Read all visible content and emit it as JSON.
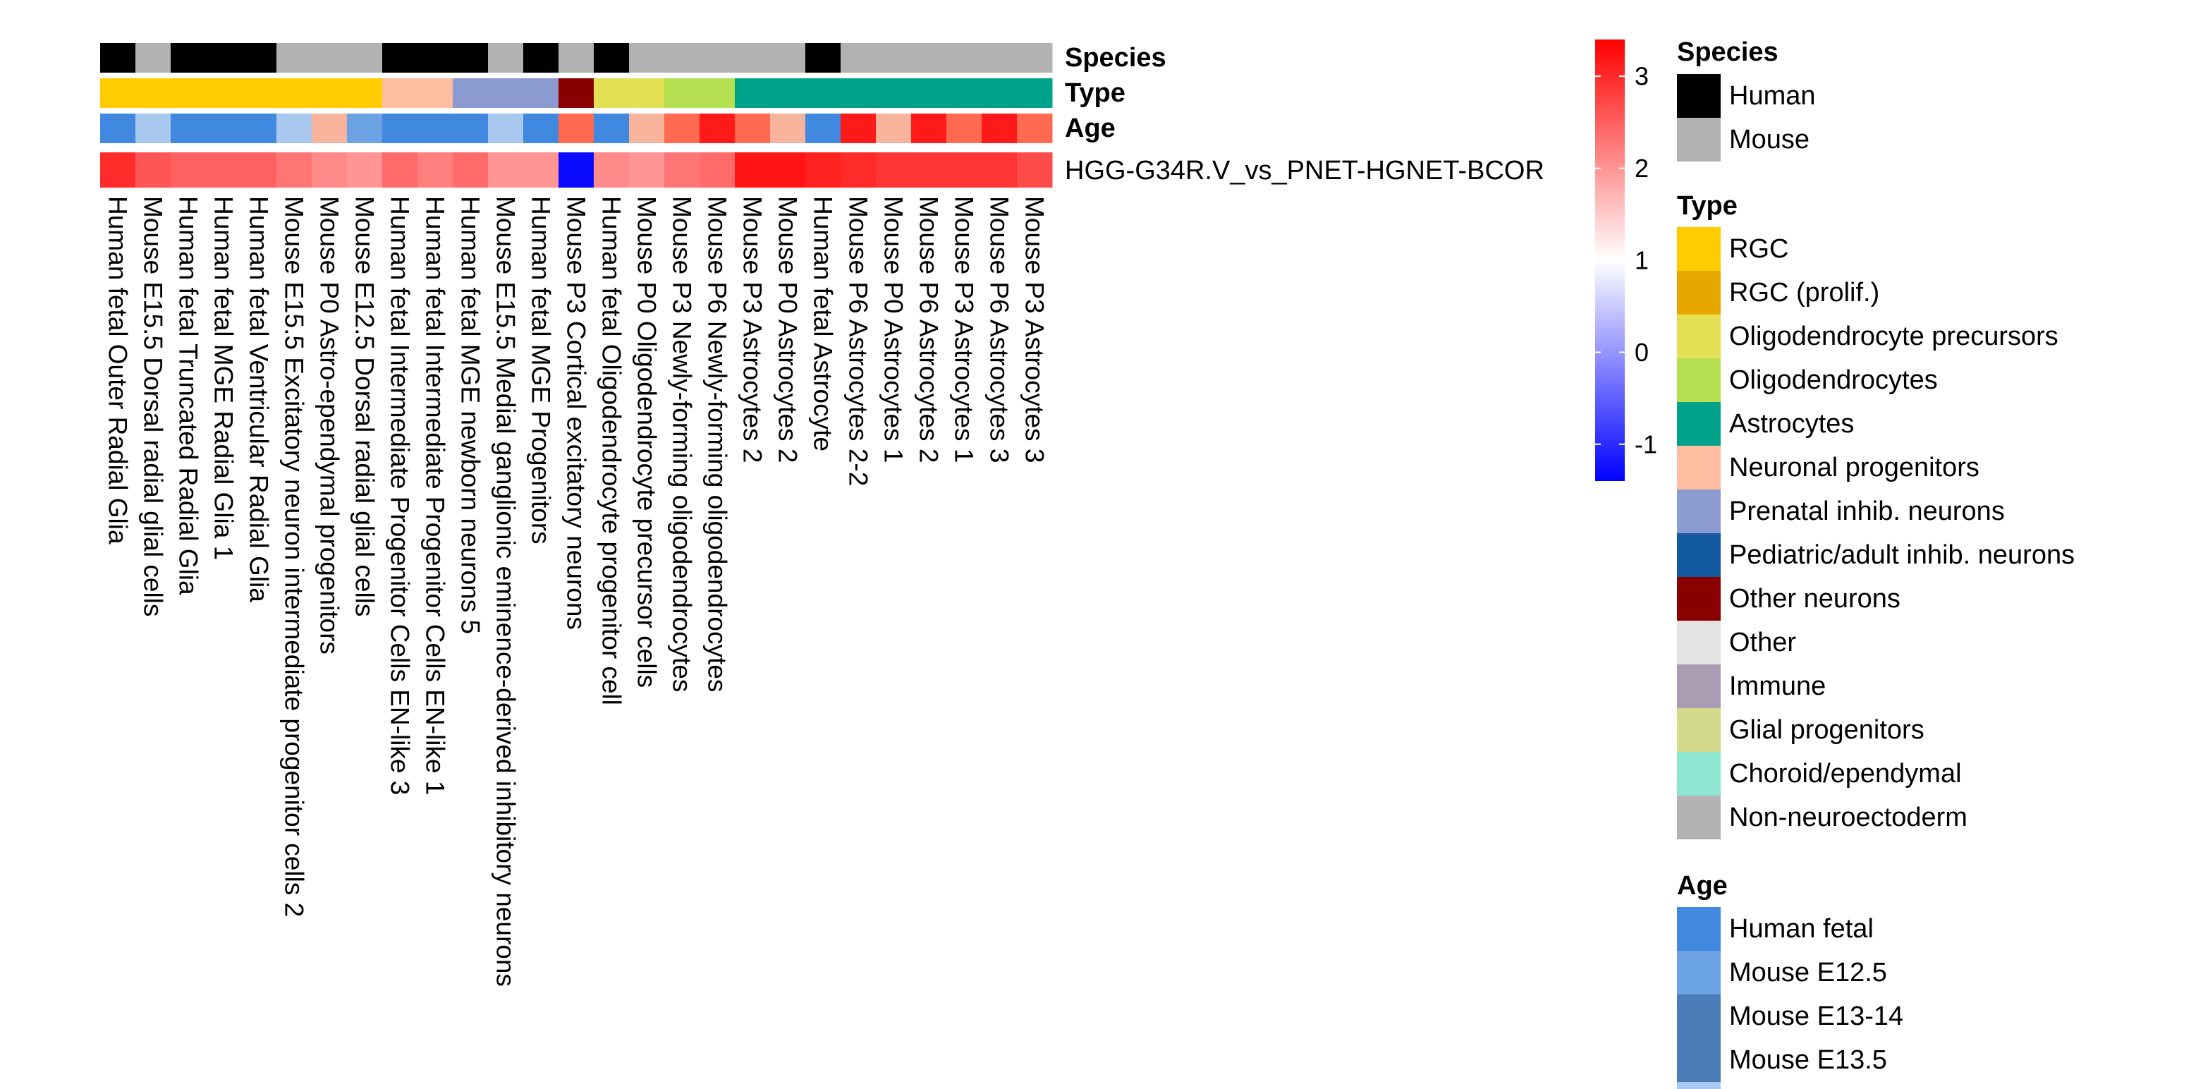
{
  "chart_data": {
    "type": "heatmap",
    "row_label": "HGG-G34R.V_vs_PNET-HGNET-BCOR",
    "columns": [
      {
        "label": "Human fetal Outer Radial Glia",
        "species": "Human",
        "cell_type": "RGC",
        "age": "Human fetal",
        "value": 3.0
      },
      {
        "label": "Mouse E15.5 Dorsal radial glial cells",
        "species": "Mouse",
        "cell_type": "RGC",
        "age": "Mouse E15.5",
        "value": 2.6
      },
      {
        "label": "Human fetal Truncated Radial Glia",
        "species": "Human",
        "cell_type": "RGC",
        "age": "Human fetal",
        "value": 2.5
      },
      {
        "label": "Human fetal MGE Radial Glia 1",
        "species": "Human",
        "cell_type": "RGC",
        "age": "Human fetal",
        "value": 2.5
      },
      {
        "label": "Human fetal Ventricular Radial Glia",
        "species": "Human",
        "cell_type": "RGC",
        "age": "Human fetal",
        "value": 2.5
      },
      {
        "label": "Mouse E15.5 Excitatory neuron intermediate progenitor cells 2",
        "species": "Mouse",
        "cell_type": "RGC",
        "age": "Mouse E15.5",
        "value": 2.3
      },
      {
        "label": "Mouse P0 Astro-ependymal progenitors",
        "species": "Mouse",
        "cell_type": "RGC",
        "age": "Mouse P0",
        "value": 2.1
      },
      {
        "label": "Mouse E12.5 Dorsal radial glial cells",
        "species": "Mouse",
        "cell_type": "RGC",
        "age": "Mouse E12.5",
        "value": 2.0
      },
      {
        "label": "Human fetal Intermediate Progenitor Cells EN-like 3",
        "species": "Human",
        "cell_type": "Neuronal progenitors",
        "age": "Human fetal",
        "value": 2.4
      },
      {
        "label": "Human fetal Intermediate Progenitor Cells EN-like 1",
        "species": "Human",
        "cell_type": "Neuronal progenitors",
        "age": "Human fetal",
        "value": 2.2
      },
      {
        "label": "Human fetal MGE newborn neurons 5",
        "species": "Human",
        "cell_type": "Prenatal inhib. neurons",
        "age": "Human fetal",
        "value": 2.4
      },
      {
        "label": "Mouse E15.5 Medial ganglionic eminence-derived inhibitory neurons",
        "species": "Mouse",
        "cell_type": "Prenatal inhib. neurons",
        "age": "Mouse E15.5",
        "value": 2.0
      },
      {
        "label": "Human fetal MGE Progenitors",
        "species": "Human",
        "cell_type": "Prenatal inhib. neurons",
        "age": "Human fetal",
        "value": 2.0
      },
      {
        "label": "Mouse P3 Cortical excitatory neurons",
        "species": "Mouse",
        "cell_type": "Other neurons",
        "age": "Mouse P3",
        "value": -1.3
      },
      {
        "label": "Human fetal Oligodendrocyte progenitor cell",
        "species": "Human",
        "cell_type": "Oligodendrocyte precursors",
        "age": "Human fetal",
        "value": 2.1
      },
      {
        "label": "Mouse P0 Oligodendrocyte precursor cells",
        "species": "Mouse",
        "cell_type": "Oligodendrocyte precursors",
        "age": "Mouse P0",
        "value": 2.0
      },
      {
        "label": "Mouse P3 Newly-forming oligodendrocytes",
        "species": "Mouse",
        "cell_type": "Oligodendrocytes",
        "age": "Mouse P3",
        "value": 2.3
      },
      {
        "label": "Mouse P6 Newly-forming oligodendrocytes",
        "species": "Mouse",
        "cell_type": "Oligodendrocytes",
        "age": "Mouse P6",
        "value": 2.4
      },
      {
        "label": "Mouse P3 Astrocytes 2",
        "species": "Mouse",
        "cell_type": "Astrocytes",
        "age": "Mouse P3",
        "value": 3.2
      },
      {
        "label": "Mouse P0 Astrocytes 2",
        "species": "Mouse",
        "cell_type": "Astrocytes",
        "age": "Mouse P0",
        "value": 3.2
      },
      {
        "label": "Human fetal Astrocyte",
        "species": "Human",
        "cell_type": "Astrocytes",
        "age": "Human fetal",
        "value": 3.1
      },
      {
        "label": "Mouse P6 Astrocytes 2-2",
        "species": "Mouse",
        "cell_type": "Astrocytes",
        "age": "Mouse P6",
        "value": 3.0
      },
      {
        "label": "Mouse P0 Astrocytes 1",
        "species": "Mouse",
        "cell_type": "Astrocytes",
        "age": "Mouse P0",
        "value": 2.9
      },
      {
        "label": "Mouse P6 Astrocytes 2",
        "species": "Mouse",
        "cell_type": "Astrocytes",
        "age": "Mouse P6",
        "value": 2.9
      },
      {
        "label": "Mouse P3 Astrocytes 1",
        "species": "Mouse",
        "cell_type": "Astrocytes",
        "age": "Mouse P3",
        "value": 2.9
      },
      {
        "label": "Mouse P6 Astrocytes 3",
        "species": "Mouse",
        "cell_type": "Astrocytes",
        "age": "Mouse P6",
        "value": 2.9
      },
      {
        "label": "Mouse P3 Astrocytes 3",
        "species": "Mouse",
        "cell_type": "Astrocytes",
        "age": "Mouse P3",
        "value": 2.7
      }
    ],
    "annotation_titles": {
      "species": "Species",
      "cell_type": "Type",
      "age": "Age"
    },
    "color_scale": {
      "range": [
        -1.4,
        3.4
      ],
      "ticks": [
        3,
        2,
        1,
        0,
        -1
      ],
      "stops": [
        {
          "value": -1.4,
          "color": "#0000ff"
        },
        {
          "value": 1.0,
          "color": "#ffffff"
        },
        {
          "value": 3.4,
          "color": "#ff0000"
        }
      ]
    },
    "legend": {
      "species": {
        "title": "Species",
        "items": [
          {
            "label": "Human",
            "color": "#000000"
          },
          {
            "label": "Mouse",
            "color": "#b2b2b2"
          }
        ]
      },
      "cell_type": {
        "title": "Type",
        "items": [
          {
            "label": "RGC",
            "color": "#ffcc00"
          },
          {
            "label": "RGC (prolif.)",
            "color": "#e6a800"
          },
          {
            "label": "Oligodendrocyte precursors",
            "color": "#e3e055"
          },
          {
            "label": "Oligodendrocytes",
            "color": "#b5e051"
          },
          {
            "label": "Astrocytes",
            "color": "#00a38a"
          },
          {
            "label": "Neuronal progenitors",
            "color": "#ffbda1"
          },
          {
            "label": "Prenatal inhib. neurons",
            "color": "#8b9ad0"
          },
          {
            "label": "Pediatric/adult inhib. neurons",
            "color": "#145aa1"
          },
          {
            "label": "Other neurons",
            "color": "#8a0000"
          },
          {
            "label": "Other",
            "color": "#e3e3e3"
          },
          {
            "label": "Immune",
            "color": "#a99cb3"
          },
          {
            "label": "Glial progenitors",
            "color": "#d4da8b"
          },
          {
            "label": "Choroid/ependymal",
            "color": "#8ee6d1"
          },
          {
            "label": "Non-neuroectoderm",
            "color": "#b2b2b2"
          }
        ]
      },
      "age": {
        "title": "Age",
        "items": [
          {
            "label": "Human fetal",
            "color": "#4088e0"
          },
          {
            "label": "Mouse E12.5",
            "color": "#6aa2e4"
          },
          {
            "label": "Mouse E13-14",
            "color": "#4a7db8"
          },
          {
            "label": "Mouse E13.5",
            "color": "#4a7db8"
          }
        ],
        "other_colors": {
          "Mouse E15.5": "#a8c8f0",
          "Mouse P0": "#f7b39c",
          "Mouse P3": "#ff6a50",
          "Mouse P6": "#ff1a1a"
        }
      }
    }
  }
}
